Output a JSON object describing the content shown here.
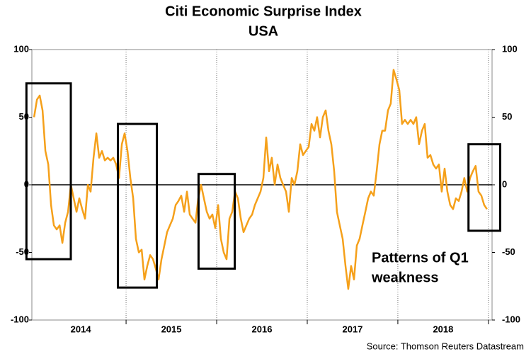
{
  "chart_data": {
    "type": "line",
    "title": "Citi Economic Surprise Index",
    "subtitle": "USA",
    "source": "Source: Thomson Reuters Datastream",
    "annotation": [
      "Patterns of Q1",
      "weakness"
    ],
    "xlim": [
      2013.96,
      2019.04
    ],
    "xticks": [
      {
        "value": 2014.5,
        "label": "2014"
      },
      {
        "value": 2015.5,
        "label": "2015"
      },
      {
        "value": 2016.5,
        "label": "2016"
      },
      {
        "value": 2017.5,
        "label": "2017"
      },
      {
        "value": 2018.5,
        "label": "2018"
      }
    ],
    "xgrid": [
      2015,
      2016,
      2017,
      2018,
      2019
    ],
    "ylim": [
      -100,
      100
    ],
    "yticks": [
      100,
      50,
      0,
      -50,
      -100
    ],
    "highlight_boxes": [
      {
        "x": [
          2013.9,
          2014.39
        ],
        "y": [
          -55,
          75
        ]
      },
      {
        "x": [
          2014.91,
          2015.34
        ],
        "y": [
          -76,
          45
        ]
      },
      {
        "x": [
          2015.8,
          2016.2
        ],
        "y": [
          -62,
          8
        ]
      },
      {
        "x": [
          2018.78,
          2019.13
        ],
        "y": [
          -34,
          30
        ]
      }
    ],
    "series": [
      {
        "name": "Citi Economic Surprise Index USA",
        "color": "#f5a01a",
        "x": [
          2013.984,
          2014.016,
          2014.047,
          2014.078,
          2014.109,
          2014.141,
          2014.172,
          2014.203,
          2014.234,
          2014.266,
          2014.297,
          2014.328,
          2014.359,
          2014.391,
          2014.422,
          2014.453,
          2014.484,
          2014.516,
          2014.547,
          2014.578,
          2014.609,
          2014.641,
          2014.672,
          2014.703,
          2014.734,
          2014.766,
          2014.797,
          2014.828,
          2014.859,
          2014.891,
          2014.922,
          2014.953,
          2014.984,
          2015.016,
          2015.047,
          2015.078,
          2015.109,
          2015.141,
          2015.172,
          2015.203,
          2015.234,
          2015.266,
          2015.297,
          2015.328,
          2015.359,
          2015.391,
          2015.422,
          2015.453,
          2015.484,
          2015.516,
          2015.547,
          2015.578,
          2015.609,
          2015.641,
          2015.672,
          2015.703,
          2015.734,
          2015.766,
          2015.797,
          2015.828,
          2015.859,
          2015.891,
          2015.922,
          2015.953,
          2015.984,
          2016.016,
          2016.047,
          2016.078,
          2016.109,
          2016.141,
          2016.172,
          2016.203,
          2016.234,
          2016.266,
          2016.297,
          2016.328,
          2016.359,
          2016.391,
          2016.422,
          2016.453,
          2016.484,
          2016.516,
          2016.547,
          2016.578,
          2016.609,
          2016.641,
          2016.672,
          2016.703,
          2016.734,
          2016.766,
          2016.797,
          2016.828,
          2016.859,
          2016.891,
          2016.922,
          2016.953,
          2016.984,
          2017.016,
          2017.047,
          2017.078,
          2017.109,
          2017.141,
          2017.172,
          2017.203,
          2017.234,
          2017.266,
          2017.297,
          2017.328,
          2017.359,
          2017.391,
          2017.422,
          2017.453,
          2017.484,
          2017.516,
          2017.547,
          2017.578,
          2017.609,
          2017.641,
          2017.672,
          2017.703,
          2017.734,
          2017.766,
          2017.797,
          2017.828,
          2017.859,
          2017.891,
          2017.922,
          2017.953,
          2017.984,
          2018.016,
          2018.047,
          2018.078,
          2018.109,
          2018.141,
          2018.172,
          2018.203,
          2018.234,
          2018.266,
          2018.297,
          2018.328,
          2018.359,
          2018.391,
          2018.422,
          2018.453,
          2018.484,
          2018.516,
          2018.547,
          2018.578,
          2018.609,
          2018.641,
          2018.672,
          2018.703,
          2018.734,
          2018.766,
          2018.797,
          2018.828,
          2018.859,
          2018.891,
          2018.922,
          2018.953,
          2018.984
        ],
        "values": [
          50,
          63,
          66,
          55,
          25,
          15,
          -15,
          -30,
          -33,
          -30,
          -43,
          -28,
          -20,
          0,
          -10,
          -20,
          -10,
          -18,
          -25,
          0,
          -5,
          20,
          38,
          20,
          25,
          18,
          20,
          18,
          20,
          15,
          5,
          30,
          38,
          25,
          5,
          -10,
          -40,
          -50,
          -48,
          -70,
          -60,
          -52,
          -55,
          -62,
          -70,
          -55,
          -45,
          -35,
          -30,
          -25,
          -15,
          -12,
          -8,
          -20,
          -5,
          -22,
          -25,
          -28,
          -10,
          0,
          -10,
          -20,
          -25,
          -22,
          -32,
          -15,
          -40,
          -50,
          -55,
          -25,
          -20,
          -5,
          -10,
          -25,
          -35,
          -30,
          -25,
          -22,
          -15,
          -10,
          -5,
          5,
          35,
          10,
          20,
          0,
          15,
          5,
          0,
          -5,
          -20,
          5,
          0,
          10,
          30,
          22,
          25,
          28,
          45,
          40,
          50,
          35,
          50,
          55,
          40,
          30,
          10,
          -20,
          -30,
          -40,
          -60,
          -77,
          -60,
          -70,
          -45,
          -40,
          -30,
          -20,
          -10,
          -5,
          -8,
          10,
          30,
          40,
          40,
          55,
          60,
          85,
          78,
          70,
          45,
          48,
          45,
          48,
          45,
          50,
          30,
          40,
          45,
          20,
          22,
          15,
          12,
          15,
          -5,
          12,
          -5,
          -15,
          -18,
          -10,
          -12,
          -5,
          5,
          -5,
          5,
          10,
          14,
          -5,
          -8,
          -15,
          -18
        ]
      }
    ]
  }
}
